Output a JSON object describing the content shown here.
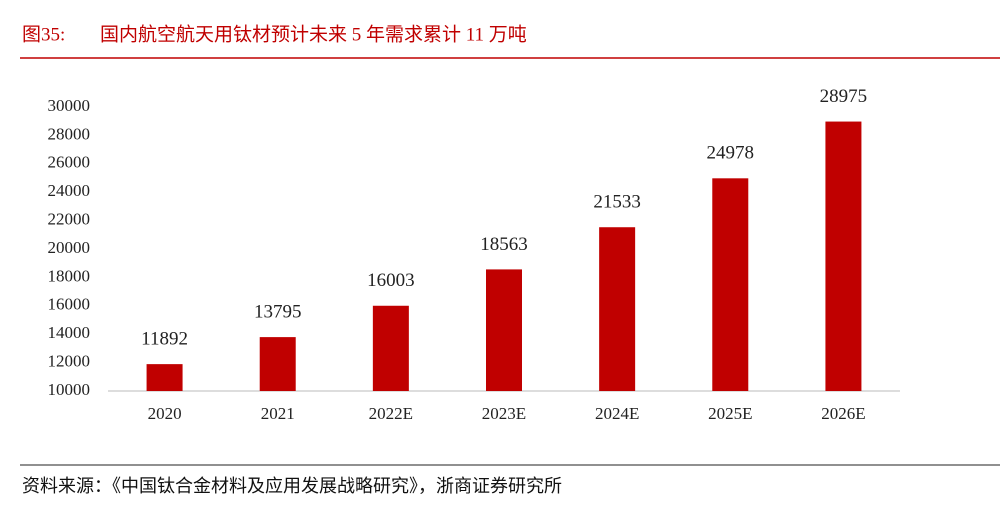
{
  "chart_data": {
    "type": "bar",
    "figure_label": "图35:",
    "title": "国内航空航天用钛材预计未来 5 年需求累计 11 万吨",
    "source": "资料来源：《中国钛合金材料及应用发展战略研究》，浙商证券研究所",
    "categories": [
      "2020",
      "2021",
      "2022E",
      "2023E",
      "2024E",
      "2025E",
      "2026E"
    ],
    "values": [
      11892,
      13795,
      16003,
      18563,
      21533,
      24978,
      28975
    ],
    "color": "#c00000",
    "ylim": [
      10000,
      30000
    ],
    "yticks": [
      10000,
      12000,
      14000,
      16000,
      18000,
      20000,
      22000,
      24000,
      26000,
      28000,
      30000
    ],
    "grid": false
  }
}
